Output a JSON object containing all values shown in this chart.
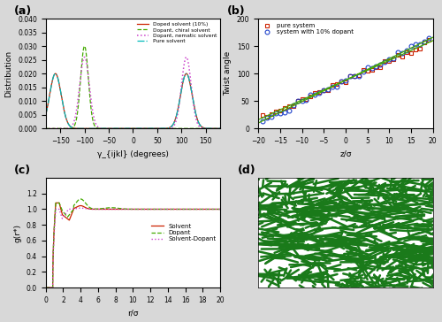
{
  "fig_width": 5.0,
  "fig_height": 3.64,
  "panel_a": {
    "label": "(a)",
    "xlabel": "γ_{ijkl} (degrees)",
    "ylabel": "Distribution",
    "xlim": [
      -180,
      180
    ],
    "ylim": [
      0,
      0.04
    ],
    "yticks": [
      0,
      0.005,
      0.01,
      0.015,
      0.02,
      0.025,
      0.03,
      0.035,
      0.04
    ],
    "xticks": [
      -150,
      -100,
      -50,
      0,
      50,
      100,
      150
    ],
    "legend_entries": [
      "Doped solvent (10%)",
      "Dopant, chiral solvent",
      "Dopant, nematic solvent",
      "Pure solvent"
    ]
  },
  "panel_b": {
    "label": "(b)",
    "xlabel": "z/σ",
    "ylabel": "Twist angle",
    "xlim": [
      -20,
      20
    ],
    "ylim": [
      0,
      200
    ],
    "yticks": [
      0,
      50,
      100,
      150,
      200
    ],
    "xticks": [
      -20,
      -15,
      -10,
      -5,
      0,
      5,
      10,
      15,
      20
    ],
    "pure_slope": 3.6,
    "pure_intercept": 88,
    "doped_slope": 3.9,
    "doped_intercept": 88,
    "legend_entries": [
      "pure system",
      "system with 10% dopant"
    ]
  },
  "panel_c": {
    "label": "(c)",
    "xlabel": "r/σ",
    "ylabel": "g(r*)",
    "xlim": [
      0,
      20
    ],
    "ylim": [
      0,
      1.4
    ],
    "yticks": [
      0.0,
      0.2,
      0.4,
      0.6,
      0.8,
      1.0,
      1.2
    ],
    "xticks": [
      0,
      2,
      4,
      6,
      8,
      10,
      12,
      14,
      16,
      18,
      20
    ],
    "legend_entries": [
      "Solvent",
      "Dopant",
      "Solvent-Dopant"
    ]
  },
  "panel_d": {
    "label": "(d)",
    "mol_color": "#1a7a1a",
    "bg_color": "#ffffff"
  },
  "fig_bg": "#d8d8d8"
}
